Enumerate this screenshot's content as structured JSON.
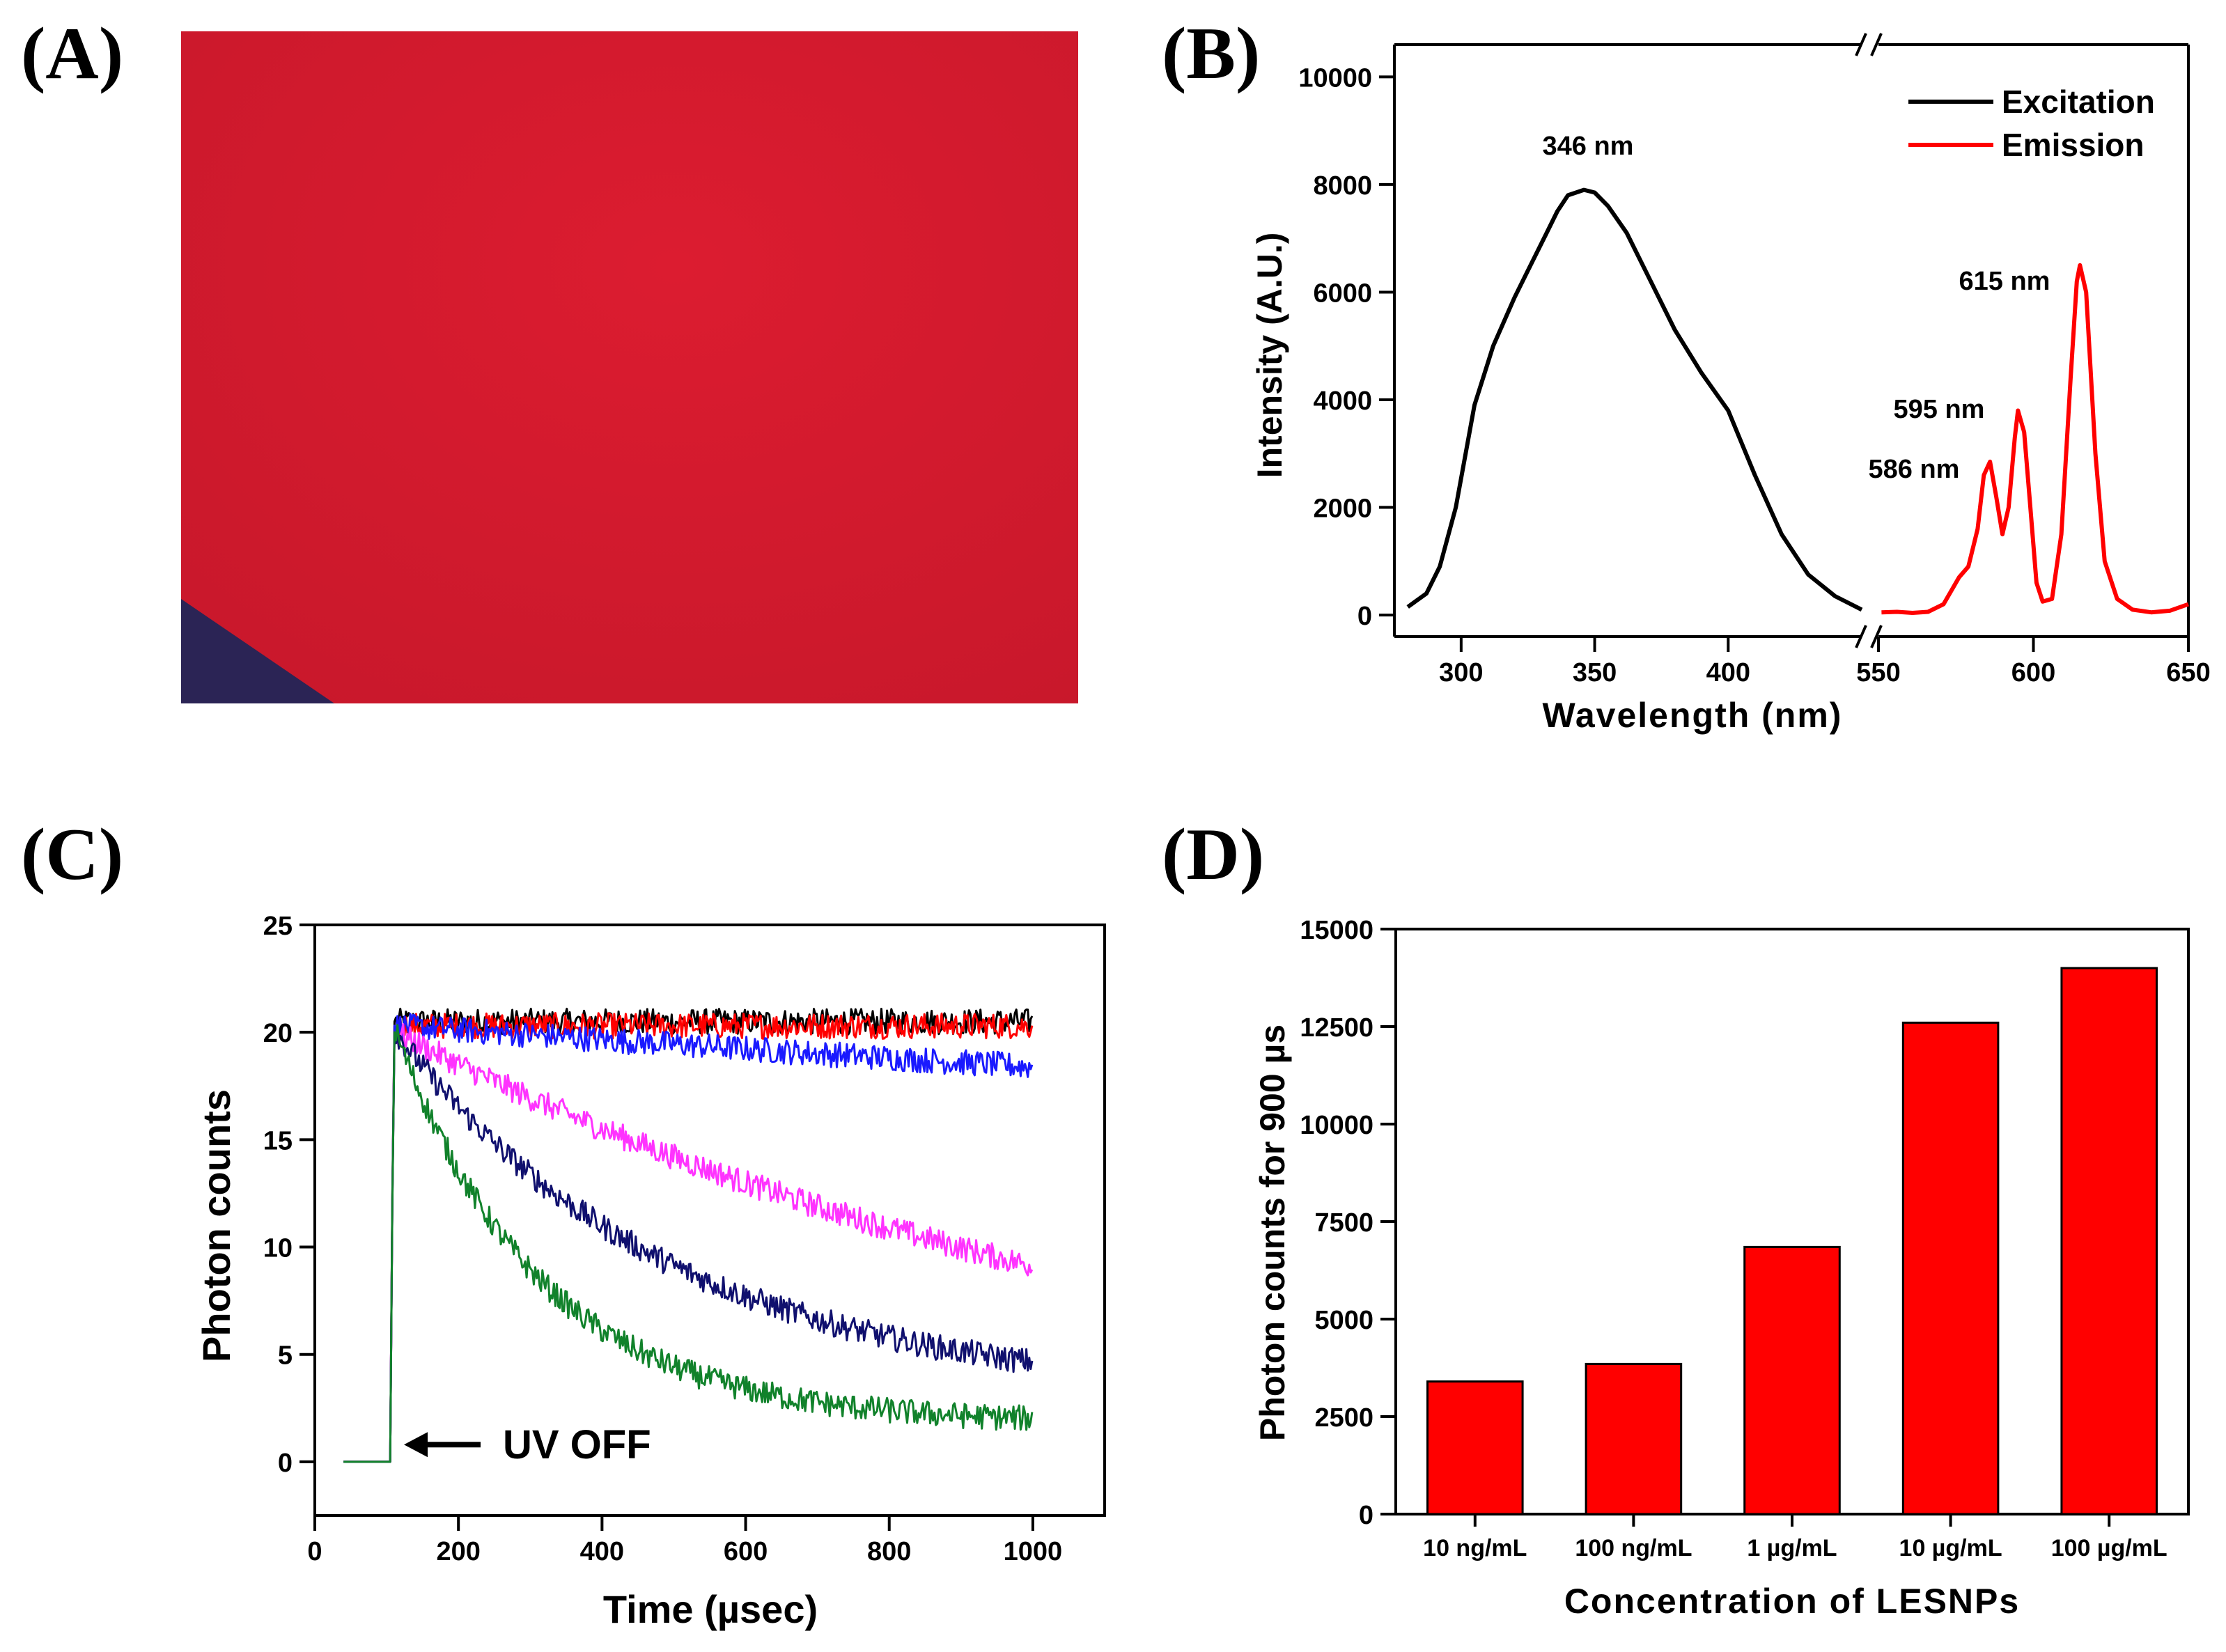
{
  "panels": {
    "a": {
      "letter": "(A)",
      "photo_fill": "#d21a2e",
      "photo_corner": "#2b2455"
    },
    "b": {
      "letter": "(B)"
    },
    "c": {
      "letter": "(C)"
    },
    "d": {
      "letter": "(D)"
    }
  },
  "chart_data": [
    {
      "id": "B",
      "type": "line",
      "xlabel": "Wavelength (nm)",
      "ylabel": "Intensity (A.U.)",
      "x_segments": [
        {
          "range": [
            275,
            450
          ],
          "ticks": [
            300,
            350,
            400
          ]
        },
        {
          "range": [
            550,
            650
          ],
          "ticks": [
            550,
            600,
            650
          ]
        }
      ],
      "ylim": [
        -400,
        10600
      ],
      "yticks": [
        0,
        2000,
        4000,
        6000,
        8000,
        10000
      ],
      "axis_break": "//",
      "legend_position": "top-right",
      "series": [
        {
          "name": "Excitation",
          "color": "#000000",
          "segment": 0,
          "x": [
            280,
            287,
            292,
            298,
            305,
            312,
            320,
            326,
            332,
            336,
            340,
            346,
            350,
            355,
            362,
            370,
            380,
            390,
            400,
            410,
            420,
            430,
            440,
            450
          ],
          "y": [
            150,
            400,
            900,
            2000,
            3900,
            5000,
            5900,
            6500,
            7100,
            7500,
            7800,
            7900,
            7850,
            7600,
            7100,
            6300,
            5300,
            4500,
            3800,
            2600,
            1500,
            750,
            350,
            100
          ]
        },
        {
          "name": "Emission",
          "color": "#ff0000",
          "segment": 1,
          "x": [
            551,
            556,
            561,
            566,
            571,
            576,
            579,
            582,
            584,
            586,
            588,
            590,
            592,
            594,
            595,
            597,
            599,
            601,
            603,
            606,
            609,
            612,
            614,
            615,
            617,
            620,
            623,
            627,
            632,
            638,
            644,
            650
          ],
          "y": [
            50,
            60,
            40,
            60,
            200,
            700,
            900,
            1600,
            2600,
            2850,
            2200,
            1500,
            2000,
            3300,
            3800,
            3400,
            2000,
            600,
            250,
            300,
            1500,
            4400,
            6200,
            6500,
            6000,
            3000,
            1000,
            300,
            100,
            50,
            80,
            200
          ]
        }
      ],
      "annotations": [
        "346 nm",
        "615 nm",
        "595 nm",
        "586 nm"
      ]
    },
    {
      "id": "C",
      "type": "line",
      "xlabel": "Time (µsec)",
      "ylabel": "Photon counts",
      "xlim": [
        0,
        1100
      ],
      "ylim": [
        -2.5,
        25
      ],
      "xticks": [
        0,
        200,
        400,
        600,
        800,
        1000
      ],
      "yticks": [
        0,
        5,
        10,
        15,
        20,
        25
      ],
      "onset_time": 105,
      "noise_amplitude": 0.6,
      "series": [
        {
          "name": "black",
          "color": "#000000",
          "baseline_start": 40,
          "peak": 20.5,
          "plateau": 20.5,
          "tau": 1000000,
          "end": 1000
        },
        {
          "name": "red",
          "color": "#ff0000",
          "baseline_start": 40,
          "peak": 20.3,
          "plateau": 20.3,
          "tau": 1000000,
          "end": 1000
        },
        {
          "name": "blue",
          "color": "#1a1aff",
          "baseline_start": 40,
          "peak": 20.3,
          "plateau": 0,
          "tau": 9000,
          "end": 1000
        },
        {
          "name": "magenta",
          "color": "#ff33ff",
          "baseline_start": 40,
          "peak": 20.0,
          "plateau": 0,
          "tau": 1130,
          "end": 1000
        },
        {
          "name": "navy",
          "color": "#10106e",
          "baseline_start": 40,
          "peak": 20.0,
          "plateau": 3.0,
          "tau": 380,
          "end": 1000
        },
        {
          "name": "green",
          "color": "#11822b",
          "baseline_start": 40,
          "peak": 20.0,
          "plateau": 1.8,
          "tau": 200,
          "end": 1000
        }
      ],
      "annotations": [
        "UV OFF"
      ]
    },
    {
      "id": "D",
      "type": "bar",
      "xlabel": "Concentration of LESNPs",
      "ylabel": "Photon counts for 900 µs",
      "categories": [
        "10 ng/mL",
        "100 ng/mL",
        "1 µg/mL",
        "10 µg/mL",
        "100 µg/mL"
      ],
      "values": [
        3400,
        3850,
        6850,
        12600,
        14000
      ],
      "ylim": [
        0,
        15000
      ],
      "yticks": [
        0,
        2500,
        5000,
        7500,
        10000,
        12500,
        15000
      ],
      "bar_color": "#ff0000"
    }
  ]
}
